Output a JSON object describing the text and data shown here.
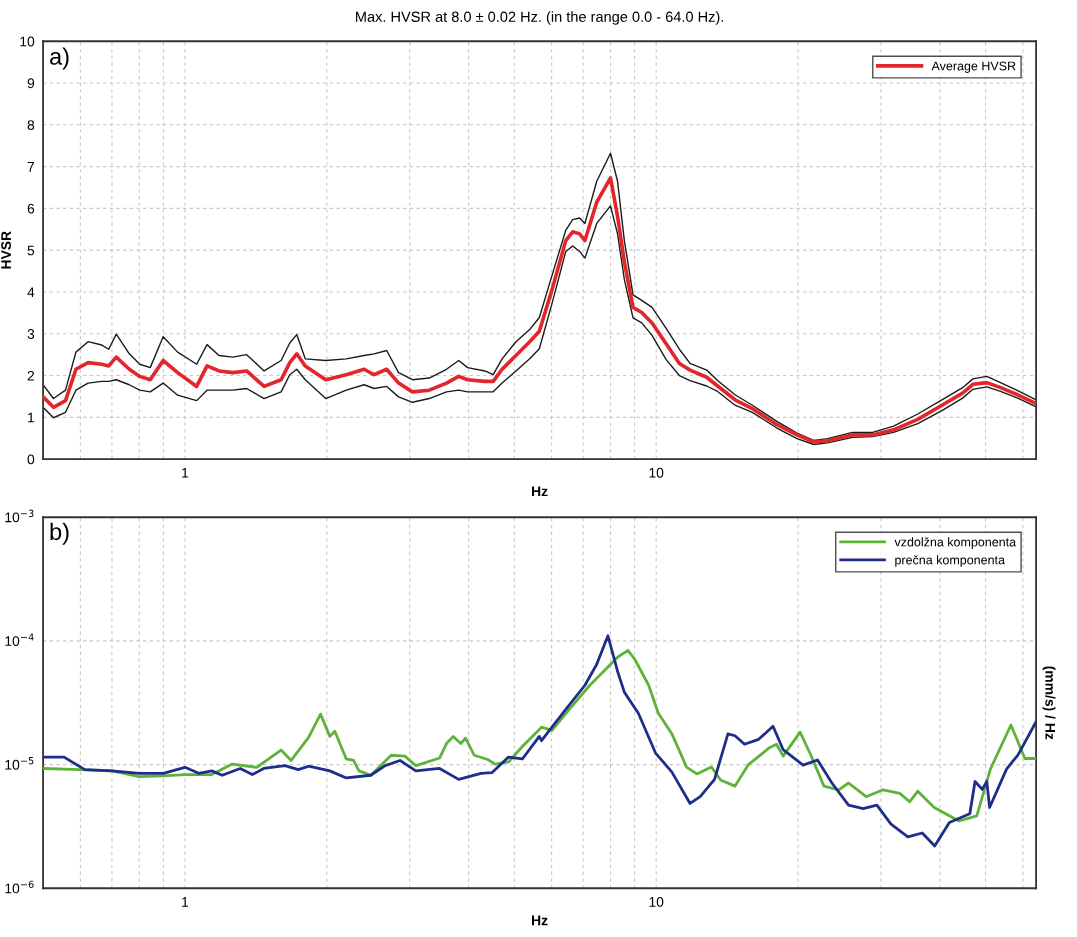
{
  "chart_data": [
    {
      "type": "line",
      "title": "Max. HVSR at 8.0 ± 0.02 Hz. (in the range 0.0 - 64.0 Hz).",
      "xlabel": "Hz",
      "ylabel": "HVSR",
      "log": "x",
      "grid": true,
      "legend": "top right",
      "annotations": [
        "a)"
      ],
      "x": [
        0.5,
        0.526,
        0.558,
        0.587,
        0.623,
        0.666,
        0.689,
        0.715,
        0.762,
        0.802,
        0.844,
        0.899,
        0.965,
        1.059,
        1.114,
        1.181,
        1.264,
        1.352,
        1.472,
        1.6,
        1.669,
        1.727,
        1.8,
        1.99,
        2.2,
        2.4,
        2.52,
        2.68,
        2.84,
        3.04,
        3.3,
        3.59,
        3.81,
        3.98,
        4.33,
        4.51,
        4.71,
        5.04,
        5.39,
        5.65,
        6.01,
        6.43,
        6.65,
        6.88,
        7.06,
        7.48,
        8.0,
        8.28,
        8.56,
        8.93,
        9.32,
        9.8,
        10.5,
        11.2,
        11.8,
        12.8,
        13.5,
        14.7,
        16.0,
        18.0,
        19.9,
        21.6,
        23.1,
        26.1,
        28.8,
        31.9,
        35.9,
        40.4,
        44.7,
        47.0,
        50.3,
        53.8,
        58.5,
        64
      ],
      "xlim": [
        0.5,
        64
      ],
      "xticks": [
        {
          "value": 0.6,
          "label": null
        },
        {
          "value": 0.7,
          "label": null
        },
        {
          "value": 0.8,
          "label": null
        },
        {
          "value": 0.9,
          "label": null
        },
        1,
        {
          "value": 2,
          "label": null
        },
        {
          "value": 3,
          "label": null
        },
        {
          "value": 4,
          "label": null
        },
        {
          "value": 5,
          "label": null
        },
        {
          "value": 6,
          "label": null
        },
        {
          "value": 7,
          "label": null
        },
        {
          "value": 8,
          "label": null
        },
        {
          "value": 9,
          "label": null
        },
        10,
        {
          "value": 20,
          "label": null
        },
        {
          "value": 30,
          "label": null
        },
        {
          "value": 40,
          "label": null
        },
        {
          "value": 50,
          "label": null
        },
        {
          "value": 60,
          "label": null
        }
      ],
      "ylim": [
        0,
        10
      ],
      "yticks": [
        0,
        1,
        2,
        3,
        4,
        5,
        6,
        7,
        8,
        9,
        10
      ],
      "series": [
        {
          "name": "Average HVSR",
          "color": "#e3262b",
          "values": [
            1.49,
            1.24,
            1.4,
            2.15,
            2.31,
            2.27,
            2.23,
            2.44,
            2.15,
            1.98,
            1.9,
            2.36,
            2.07,
            1.74,
            2.23,
            2.11,
            2.07,
            2.11,
            1.74,
            1.9,
            2.31,
            2.52,
            2.23,
            1.9,
            2.02,
            2.15,
            2.02,
            2.15,
            1.82,
            1.61,
            1.65,
            1.82,
            1.98,
            1.9,
            1.86,
            1.86,
            2.15,
            2.48,
            2.81,
            3.06,
            4.05,
            5.23,
            5.44,
            5.39,
            5.23,
            6.15,
            6.73,
            5.81,
            4.72,
            3.63,
            3.51,
            3.26,
            2.76,
            2.29,
            2.13,
            1.96,
            1.75,
            1.42,
            1.21,
            0.83,
            0.58,
            0.41,
            0.44,
            0.58,
            0.58,
            0.7,
            0.95,
            1.29,
            1.58,
            1.79,
            1.83,
            1.71,
            1.54,
            1.33
          ]
        },
        {
          "color": "#1a1a1a",
          "values": [
            1.78,
            1.45,
            1.65,
            2.56,
            2.81,
            2.73,
            2.63,
            2.99,
            2.52,
            2.27,
            2.19,
            2.93,
            2.56,
            2.27,
            2.74,
            2.48,
            2.44,
            2.5,
            2.11,
            2.36,
            2.78,
            2.98,
            2.4,
            2.36,
            2.4,
            2.48,
            2.52,
            2.6,
            2.07,
            1.9,
            1.94,
            2.15,
            2.36,
            2.19,
            2.11,
            2.02,
            2.4,
            2.81,
            3.1,
            3.39,
            4.39,
            5.48,
            5.73,
            5.77,
            5.64,
            6.65,
            7.32,
            6.65,
            5.23,
            3.93,
            3.8,
            3.63,
            3.13,
            2.63,
            2.29,
            2.13,
            1.88,
            1.54,
            1.29,
            0.91,
            0.62,
            0.45,
            0.49,
            0.64,
            0.64,
            0.79,
            1.08,
            1.42,
            1.71,
            1.92,
            1.98,
            1.83,
            1.64,
            1.42
          ]
        },
        {
          "color": "#1a1a1a",
          "values": [
            1.24,
            0.99,
            1.12,
            1.65,
            1.82,
            1.86,
            1.86,
            1.9,
            1.78,
            1.65,
            1.61,
            1.82,
            1.53,
            1.4,
            1.65,
            1.65,
            1.65,
            1.69,
            1.45,
            1.61,
            2.02,
            2.15,
            1.9,
            1.45,
            1.65,
            1.78,
            1.69,
            1.74,
            1.49,
            1.36,
            1.45,
            1.61,
            1.65,
            1.61,
            1.61,
            1.61,
            1.82,
            2.11,
            2.4,
            2.64,
            3.72,
            4.97,
            5.1,
            4.97,
            4.81,
            5.64,
            6.06,
            5.39,
            4.3,
            3.38,
            3.26,
            2.96,
            2.38,
            2.0,
            1.88,
            1.75,
            1.62,
            1.29,
            1.12,
            0.75,
            0.49,
            0.35,
            0.39,
            0.52,
            0.54,
            0.64,
            0.85,
            1.16,
            1.46,
            1.67,
            1.73,
            1.62,
            1.46,
            1.25
          ]
        }
      ]
    },
    {
      "type": "line",
      "xlabel": "Hz",
      "ylabel": "(mm/s) / Hz",
      "log": "xy",
      "grid": true,
      "legend": "top right",
      "annotations": [
        "b)"
      ],
      "xlim": [
        0.5,
        64
      ],
      "xticks": [
        {
          "value": 0.6,
          "label": null
        },
        {
          "value": 0.7,
          "label": null
        },
        {
          "value": 0.8,
          "label": null
        },
        {
          "value": 0.9,
          "label": null
        },
        1,
        {
          "value": 2,
          "label": null
        },
        {
          "value": 3,
          "label": null
        },
        {
          "value": 4,
          "label": null
        },
        {
          "value": 5,
          "label": null
        },
        {
          "value": 6,
          "label": null
        },
        {
          "value": 7,
          "label": null
        },
        {
          "value": 8,
          "label": null
        },
        {
          "value": 9,
          "label": null
        },
        10,
        {
          "value": 20,
          "label": null
        },
        {
          "value": 30,
          "label": null
        },
        {
          "value": 40,
          "label": null
        },
        {
          "value": 50,
          "label": null
        },
        {
          "value": 60,
          "label": null
        }
      ],
      "ylim": [
        1e-06,
        0.001
      ],
      "yticks": [
        {
          "value": 1e-06,
          "label": "10$^{−6}$"
        },
        {
          "value": 1e-05,
          "label": "10$^{−5}$"
        },
        {
          "value": 0.0001,
          "label": "10$^{−4}$"
        },
        {
          "value": 0.001,
          "label": "10$^{−3}$"
        }
      ],
      "series": [
        {
          "name": "vzdolžna komponenta",
          "color": "#5cb338",
          "x": [
            0.5,
            0.6,
            0.7,
            0.8,
            0.9,
            1.0,
            1.14,
            1.26,
            1.42,
            1.6,
            1.68,
            1.83,
            1.94,
            2.03,
            2.08,
            2.2,
            2.28,
            2.34,
            2.48,
            2.74,
            2.93,
            3.09,
            3.47,
            3.59,
            3.71,
            3.85,
            3.94,
            4.11,
            4.39,
            4.55,
            4.86,
            5.2,
            5.65,
            5.71,
            6.01,
            6.54,
            7.23,
            7.74,
            8.28,
            8.71,
            9.0,
            9.64,
            10.1,
            10.8,
            11.6,
            12.2,
            13.1,
            13.7,
            14.7,
            15.7,
            17.4,
            18.0,
            18.6,
            20.2,
            21.3,
            22.7,
            24.4,
            25.6,
            27.9,
            30.3,
            32.9,
            34.5,
            35.9,
            38.9,
            43.9,
            47.9,
            51.2,
            56.6,
            60.6,
            64
          ],
          "values": [
            9.3e-06,
            9.1e-06,
            8.9e-06,
            8e-06,
            8.1e-06,
            8.3e-06,
            8.3e-06,
            1.01e-05,
            9.5e-06,
            1.31e-05,
            1.08e-05,
            1.66e-05,
            2.56e-05,
            1.69e-05,
            1.86e-05,
            1.11e-05,
            1.08e-05,
            8.9e-06,
            8.2e-06,
            1.19e-05,
            1.17e-05,
            9.8e-06,
            1.13e-05,
            1.48e-05,
            1.69e-05,
            1.48e-05,
            1.64e-05,
            1.19e-05,
            1.1e-05,
            1.01e-05,
            1.05e-05,
            1.4e-05,
            1.92e-05,
            2.01e-05,
            1.89e-05,
            2.79e-05,
            4.38e-05,
            5.69e-05,
            7.38e-05,
            8.39e-05,
            7.14e-05,
            4.38e-05,
            2.61e-05,
            1.77e-05,
            9.55e-06,
            8.4e-06,
            9.55e-06,
            7.5e-06,
            6.7e-06,
            1e-05,
            1.37e-05,
            1.46e-05,
            1.17e-05,
            1.83e-05,
            1.19e-05,
            6.7e-06,
            6.25e-06,
            7.1e-06,
            5.5e-06,
            6.25e-06,
            5.85e-06,
            5e-06,
            6.1e-06,
            4.5e-06,
            3.5e-06,
            3.85e-06,
            9.2e-06,
            2.09e-05,
            1.12e-05,
            1.12e-05
          ]
        },
        {
          "name": "prečna komponenta",
          "color": "#1f2d8a",
          "x": [
            0.5,
            0.554,
            0.613,
            0.7,
            0.8,
            0.9,
            1.0,
            1.07,
            1.14,
            1.2,
            1.31,
            1.39,
            1.47,
            1.63,
            1.74,
            1.83,
            2.03,
            2.2,
            2.48,
            2.66,
            2.86,
            3.09,
            3.47,
            3.81,
            4.25,
            4.48,
            4.86,
            5.2,
            5.65,
            5.71,
            6.01,
            6.43,
            7.06,
            7.48,
            7.9,
            8.28,
            8.56,
            9.16,
            9.97,
            10.8,
            11.8,
            12.4,
            13.3,
            14.2,
            14.7,
            15.4,
            16.5,
            17.7,
            18.6,
            20.5,
            22.0,
            23.6,
            25.6,
            27.5,
            29.4,
            31.5,
            34.2,
            36.7,
            39.0,
            41.9,
            46.3,
            47.5,
            49.2,
            50.3,
            51.0,
            55.4,
            58.6,
            64
          ],
          "values": [
            1.15e-05,
            1.15e-05,
            9.1e-06,
            8.9e-06,
            8.5e-06,
            8.5e-06,
            9.5e-06,
            8.5e-06,
            8.9e-06,
            8.2e-06,
            9.3e-06,
            8.3e-06,
            9.3e-06,
            9.8e-06,
            9.1e-06,
            9.7e-06,
            8.9e-06,
            7.8e-06,
            8.2e-06,
            9.8e-06,
            1.08e-05,
            8.9e-06,
            9.3e-06,
            7.6e-06,
            8.5e-06,
            8.6e-06,
            1.15e-05,
            1.11e-05,
            1.69e-05,
            1.56e-05,
            2.01e-05,
            2.79e-05,
            4.38e-05,
            6.47e-05,
            0.00011,
            5.69e-05,
            3.85e-05,
            2.61e-05,
            1.24e-05,
            8.7e-06,
            4.85e-06,
            5.5e-06,
            7.6e-06,
            1.77e-05,
            1.71e-05,
            1.46e-05,
            1.6e-05,
            2.04e-05,
            1.32e-05,
            9.9e-06,
            1.09e-05,
            7.1e-06,
            4.7e-06,
            4.4e-06,
            4.7e-06,
            3.3e-06,
            2.6e-06,
            2.8e-06,
            2.2e-06,
            3.4e-06,
            4e-06,
            7.3e-06,
            6.3e-06,
            7.3e-06,
            4.5e-06,
            9.2e-06,
            1.2e-05,
            2.22e-05
          ]
        }
      ]
    }
  ]
}
